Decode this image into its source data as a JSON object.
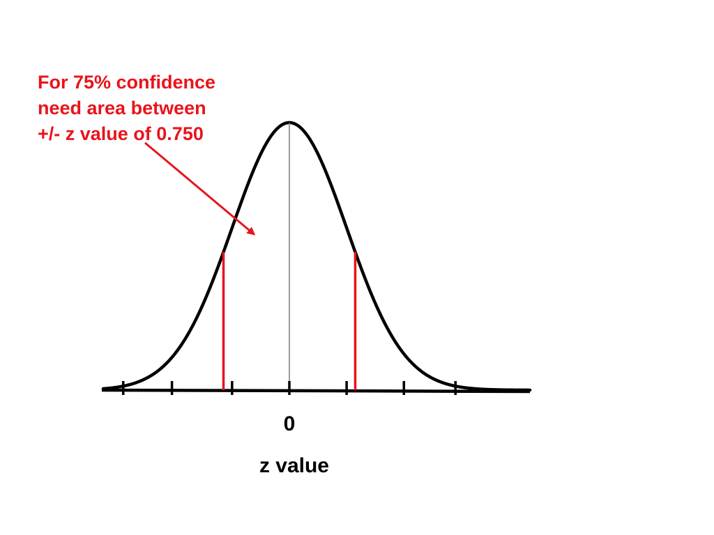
{
  "chart_data": {
    "type": "line",
    "distribution": "standard normal",
    "title": "",
    "xlabel": "z value",
    "ylabel": "",
    "xlim": [
      -3.25,
      4.2
    ],
    "ylim": [
      0,
      0.4
    ],
    "grid": false,
    "legend": "none",
    "x_ticks": [
      -2.9,
      -2.05,
      -1.0,
      0,
      1.0,
      2.0,
      2.9
    ],
    "tick_labels": [
      {
        "x": 0,
        "label": "0"
      }
    ],
    "center_line_x": 0,
    "critical_values": [
      -1.15,
      1.15
    ],
    "annotation": {
      "lines": [
        "For 75% confidence",
        "need area between",
        "+/- z value of 0.750"
      ],
      "color": "#e8141b"
    }
  },
  "colors": {
    "curve": "#000000",
    "axis": "#000000",
    "center_line": "#7a7a7a",
    "critical_lines": "#e8141b",
    "annotation": "#e8141b",
    "arrow": "#e8141b"
  }
}
